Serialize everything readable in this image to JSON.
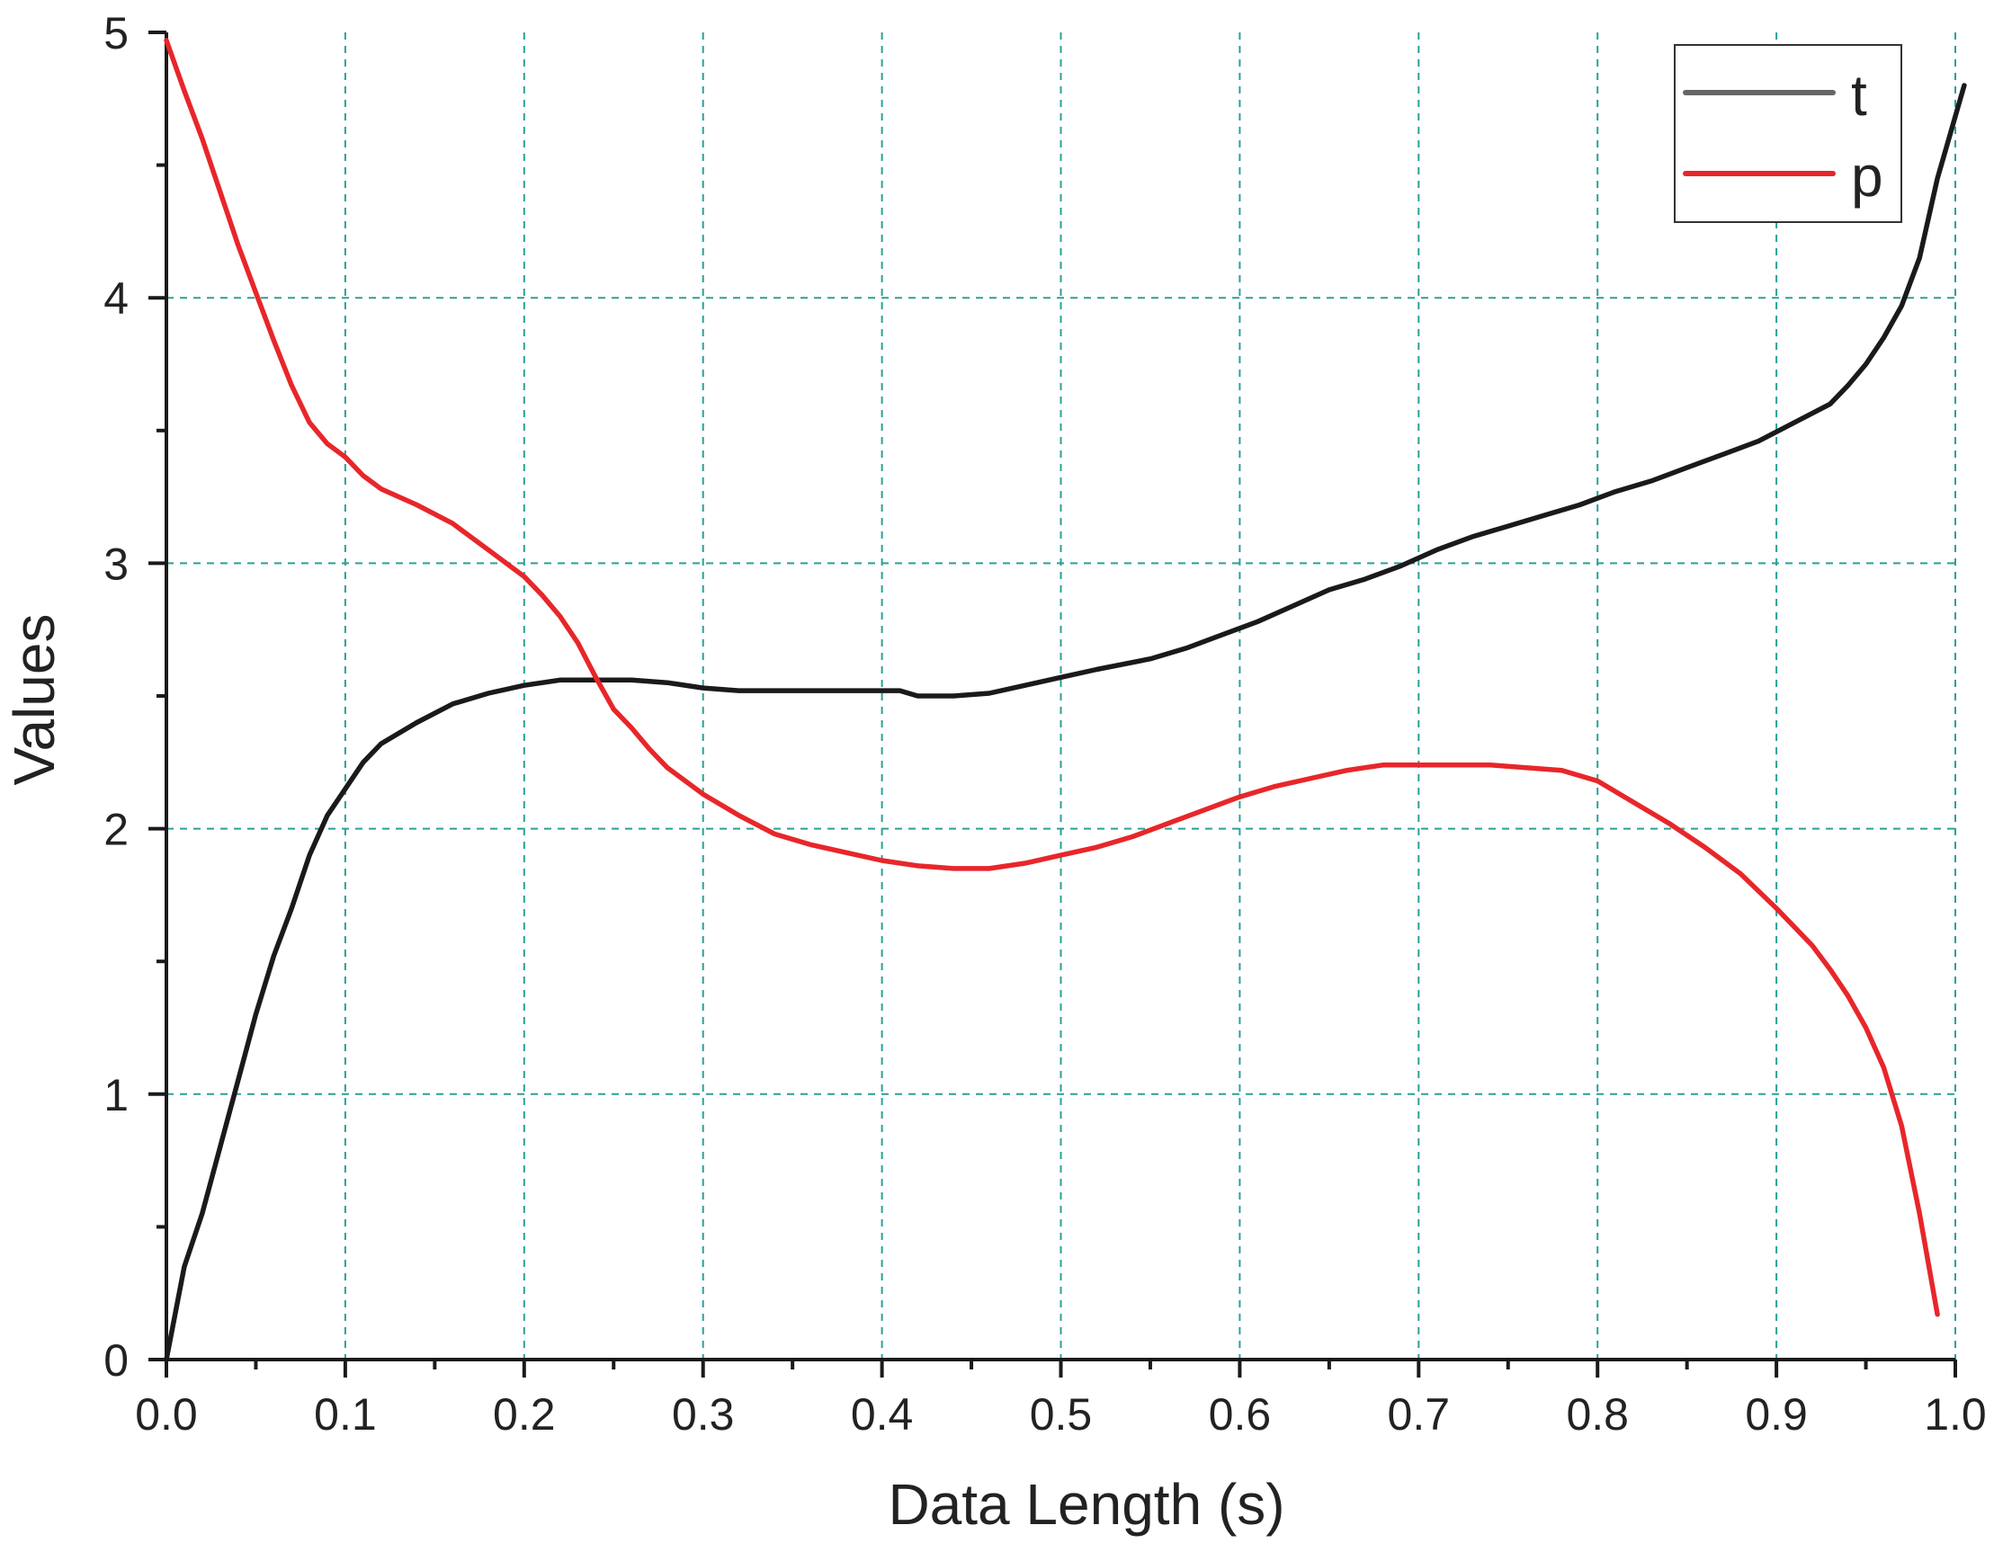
{
  "chart_data": {
    "type": "line",
    "title": "",
    "xlabel": "Data Length (s)",
    "ylabel": "Values",
    "xlim": [
      0,
      1.0
    ],
    "ylim": [
      0,
      5
    ],
    "x_ticks": [
      0.0,
      0.1,
      0.2,
      0.3,
      0.4,
      0.5,
      0.6,
      0.7,
      0.8,
      0.9,
      1.0
    ],
    "x_tick_labels": [
      "0.0",
      "0.1",
      "0.2",
      "0.3",
      "0.4",
      "0.5",
      "0.6",
      "0.7",
      "0.8",
      "0.9",
      "1.0"
    ],
    "y_ticks": [
      0,
      1,
      2,
      3,
      4,
      5
    ],
    "y_tick_labels": [
      "0",
      "1",
      "2",
      "3",
      "4",
      "5"
    ],
    "grid": true,
    "grid_color": "#2aa198",
    "legend_position": "top-right",
    "series": [
      {
        "name": "t",
        "color": "#1a1a1a",
        "points": [
          [
            0.0,
            0.0
          ],
          [
            0.01,
            0.35
          ],
          [
            0.02,
            0.55
          ],
          [
            0.03,
            0.8
          ],
          [
            0.04,
            1.05
          ],
          [
            0.05,
            1.3
          ],
          [
            0.06,
            1.52
          ],
          [
            0.07,
            1.7
          ],
          [
            0.08,
            1.9
          ],
          [
            0.09,
            2.05
          ],
          [
            0.1,
            2.15
          ],
          [
            0.11,
            2.25
          ],
          [
            0.12,
            2.32
          ],
          [
            0.14,
            2.4
          ],
          [
            0.16,
            2.47
          ],
          [
            0.18,
            2.51
          ],
          [
            0.2,
            2.54
          ],
          [
            0.22,
            2.56
          ],
          [
            0.24,
            2.56
          ],
          [
            0.26,
            2.56
          ],
          [
            0.28,
            2.55
          ],
          [
            0.3,
            2.53
          ],
          [
            0.32,
            2.52
          ],
          [
            0.35,
            2.52
          ],
          [
            0.38,
            2.52
          ],
          [
            0.41,
            2.52
          ],
          [
            0.42,
            2.5
          ],
          [
            0.44,
            2.5
          ],
          [
            0.46,
            2.51
          ],
          [
            0.48,
            2.54
          ],
          [
            0.5,
            2.57
          ],
          [
            0.52,
            2.6
          ],
          [
            0.55,
            2.64
          ],
          [
            0.57,
            2.68
          ],
          [
            0.59,
            2.73
          ],
          [
            0.61,
            2.78
          ],
          [
            0.63,
            2.84
          ],
          [
            0.65,
            2.9
          ],
          [
            0.67,
            2.94
          ],
          [
            0.69,
            2.99
          ],
          [
            0.71,
            3.05
          ],
          [
            0.73,
            3.1
          ],
          [
            0.75,
            3.14
          ],
          [
            0.77,
            3.18
          ],
          [
            0.79,
            3.22
          ],
          [
            0.81,
            3.27
          ],
          [
            0.83,
            3.31
          ],
          [
            0.85,
            3.36
          ],
          [
            0.87,
            3.41
          ],
          [
            0.89,
            3.46
          ],
          [
            0.91,
            3.53
          ],
          [
            0.93,
            3.6
          ],
          [
            0.94,
            3.67
          ],
          [
            0.95,
            3.75
          ],
          [
            0.96,
            3.85
          ],
          [
            0.97,
            3.97
          ],
          [
            0.98,
            4.15
          ],
          [
            0.99,
            4.45
          ],
          [
            1.005,
            4.8
          ]
        ]
      },
      {
        "name": "p",
        "color": "#e8262a",
        "points": [
          [
            0.0,
            4.97
          ],
          [
            0.01,
            4.78
          ],
          [
            0.02,
            4.6
          ],
          [
            0.03,
            4.4
          ],
          [
            0.04,
            4.2
          ],
          [
            0.05,
            4.02
          ],
          [
            0.06,
            3.84
          ],
          [
            0.07,
            3.67
          ],
          [
            0.08,
            3.53
          ],
          [
            0.09,
            3.45
          ],
          [
            0.1,
            3.4
          ],
          [
            0.11,
            3.33
          ],
          [
            0.12,
            3.28
          ],
          [
            0.14,
            3.22
          ],
          [
            0.16,
            3.15
          ],
          [
            0.18,
            3.05
          ],
          [
            0.2,
            2.95
          ],
          [
            0.21,
            2.88
          ],
          [
            0.22,
            2.8
          ],
          [
            0.23,
            2.7
          ],
          [
            0.24,
            2.57
          ],
          [
            0.25,
            2.45
          ],
          [
            0.26,
            2.38
          ],
          [
            0.27,
            2.3
          ],
          [
            0.28,
            2.23
          ],
          [
            0.3,
            2.13
          ],
          [
            0.32,
            2.05
          ],
          [
            0.34,
            1.98
          ],
          [
            0.36,
            1.94
          ],
          [
            0.38,
            1.91
          ],
          [
            0.4,
            1.88
          ],
          [
            0.42,
            1.86
          ],
          [
            0.44,
            1.85
          ],
          [
            0.46,
            1.85
          ],
          [
            0.48,
            1.87
          ],
          [
            0.5,
            1.9
          ],
          [
            0.52,
            1.93
          ],
          [
            0.54,
            1.97
          ],
          [
            0.56,
            2.02
          ],
          [
            0.58,
            2.07
          ],
          [
            0.6,
            2.12
          ],
          [
            0.62,
            2.16
          ],
          [
            0.64,
            2.19
          ],
          [
            0.66,
            2.22
          ],
          [
            0.68,
            2.24
          ],
          [
            0.7,
            2.24
          ],
          [
            0.72,
            2.24
          ],
          [
            0.74,
            2.24
          ],
          [
            0.76,
            2.23
          ],
          [
            0.78,
            2.22
          ],
          [
            0.8,
            2.18
          ],
          [
            0.82,
            2.1
          ],
          [
            0.84,
            2.02
          ],
          [
            0.86,
            1.93
          ],
          [
            0.88,
            1.83
          ],
          [
            0.9,
            1.7
          ],
          [
            0.91,
            1.63
          ],
          [
            0.92,
            1.56
          ],
          [
            0.93,
            1.47
          ],
          [
            0.94,
            1.37
          ],
          [
            0.95,
            1.25
          ],
          [
            0.96,
            1.1
          ],
          [
            0.97,
            0.88
          ],
          [
            0.98,
            0.55
          ],
          [
            0.99,
            0.17
          ]
        ]
      }
    ]
  }
}
